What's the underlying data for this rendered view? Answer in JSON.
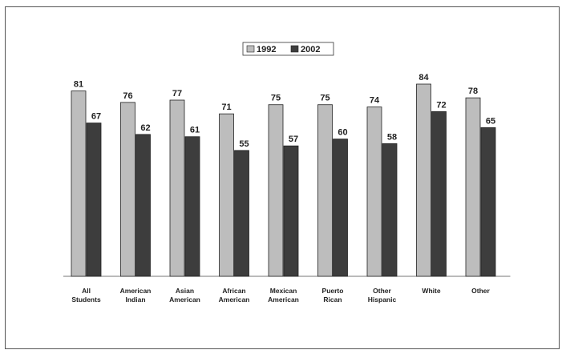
{
  "chart_data": {
    "type": "bar",
    "categories": [
      [
        "All",
        "Students"
      ],
      [
        "American",
        "Indian"
      ],
      [
        "Asian",
        "American"
      ],
      [
        "African",
        "American"
      ],
      [
        "Mexican",
        "American"
      ],
      [
        "Puerto",
        "Rican"
      ],
      [
        "Other",
        "Hispanic"
      ],
      [
        "White"
      ],
      [
        "Other"
      ]
    ],
    "series": [
      {
        "name": "1992",
        "values": [
          81,
          76,
          77,
          71,
          75,
          75,
          74,
          84,
          78
        ],
        "color": "#bdbdbd"
      },
      {
        "name": "2002",
        "values": [
          67,
          62,
          61,
          55,
          57,
          60,
          58,
          72,
          65
        ],
        "color": "#3d3d3d"
      }
    ],
    "ylim": [
      0,
      84
    ],
    "legend": "top-center",
    "grid": false
  }
}
